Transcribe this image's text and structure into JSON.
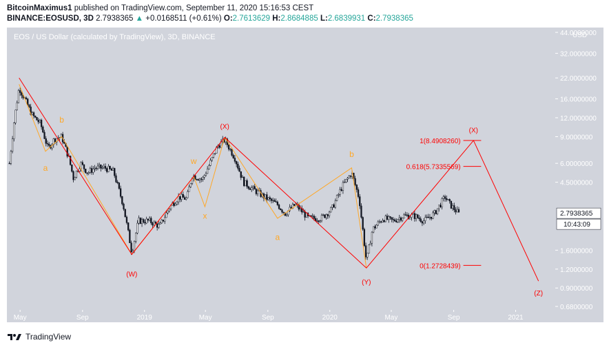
{
  "header": {
    "author": "BitcoinMaximus1",
    "published_text": "published on TradingView.com, September 11, 2020 15:16:53 CEST",
    "symbol": "BINANCE:EOSUSD, 3D",
    "last": "2.7938365",
    "change_arrow": "▲",
    "change": "+0.0168511 (+0.61%)",
    "o_label": "O:",
    "o": "2.7613629",
    "h_label": "H:",
    "h": "2.8684885",
    "l_label": "L:",
    "l": "2.6839931",
    "c_label": "C:",
    "c": "2.7938365"
  },
  "chart_data": {
    "type": "line",
    "title": "EOS / US Dollar (calculated by TradingView), 3D, BINANCE",
    "y_unit": "USD",
    "y_scale": "log",
    "y_ticks": [
      "44.0000000",
      "32.0000000",
      "22.0000000",
      "16.0000000",
      "12.0000000",
      "9.0000000",
      "6.0000000",
      "4.5000000",
      "2.7938365",
      "1.6000000",
      "1.2000000",
      "0.9000000",
      "0.6800000"
    ],
    "x_ticks": [
      "May",
      "Sep",
      "2019",
      "May",
      "Sep",
      "2020",
      "May",
      "Sep",
      "2021"
    ],
    "current_price": "2.7938365",
    "countdown": "10:43:09",
    "price_series": [
      {
        "t": "2018-04-10",
        "v": 6.0
      },
      {
        "t": "2018-04-20",
        "v": 12.0
      },
      {
        "t": "2018-04-29",
        "v": 19.0
      },
      {
        "t": "2018-05-10",
        "v": 16.0
      },
      {
        "t": "2018-05-25",
        "v": 12.5
      },
      {
        "t": "2018-06-10",
        "v": 11.0
      },
      {
        "t": "2018-06-25",
        "v": 7.5
      },
      {
        "t": "2018-07-08",
        "v": 8.7
      },
      {
        "t": "2018-07-22",
        "v": 9.0
      },
      {
        "t": "2018-08-05",
        "v": 6.5
      },
      {
        "t": "2018-08-14",
        "v": 4.8
      },
      {
        "t": "2018-08-28",
        "v": 6.0
      },
      {
        "t": "2018-09-11",
        "v": 5.2
      },
      {
        "t": "2018-09-25",
        "v": 5.6
      },
      {
        "t": "2018-10-15",
        "v": 5.6
      },
      {
        "t": "2018-11-01",
        "v": 5.3
      },
      {
        "t": "2018-11-20",
        "v": 3.2
      },
      {
        "t": "2018-12-07",
        "v": 1.55
      },
      {
        "t": "2018-12-20",
        "v": 2.5
      },
      {
        "t": "2019-01-10",
        "v": 2.5
      },
      {
        "t": "2019-01-31",
        "v": 2.3
      },
      {
        "t": "2019-02-20",
        "v": 3.1
      },
      {
        "t": "2019-03-10",
        "v": 3.6
      },
      {
        "t": "2019-03-25",
        "v": 3.5
      },
      {
        "t": "2019-04-05",
        "v": 5.0
      },
      {
        "t": "2019-04-25",
        "v": 4.7
      },
      {
        "t": "2019-05-10",
        "v": 6.0
      },
      {
        "t": "2019-05-25",
        "v": 7.8
      },
      {
        "t": "2019-06-08",
        "v": 8.6
      },
      {
        "t": "2019-06-28",
        "v": 6.5
      },
      {
        "t": "2019-07-15",
        "v": 4.5
      },
      {
        "t": "2019-08-05",
        "v": 4.0
      },
      {
        "t": "2019-08-25",
        "v": 3.6
      },
      {
        "t": "2019-09-20",
        "v": 3.2
      },
      {
        "t": "2019-10-05",
        "v": 2.8
      },
      {
        "t": "2019-10-25",
        "v": 3.2
      },
      {
        "t": "2019-11-20",
        "v": 2.6
      },
      {
        "t": "2019-12-15",
        "v": 2.6
      },
      {
        "t": "2020-01-05",
        "v": 3.0
      },
      {
        "t": "2020-01-25",
        "v": 4.2
      },
      {
        "t": "2020-02-13",
        "v": 5.2
      },
      {
        "t": "2020-02-28",
        "v": 3.5
      },
      {
        "t": "2020-03-13",
        "v": 1.35
      },
      {
        "t": "2020-03-25",
        "v": 2.2
      },
      {
        "t": "2020-04-15",
        "v": 2.6
      },
      {
        "t": "2020-05-05",
        "v": 2.5
      },
      {
        "t": "2020-05-25",
        "v": 2.7
      },
      {
        "t": "2020-06-15",
        "v": 2.7
      },
      {
        "t": "2020-07-05",
        "v": 2.5
      },
      {
        "t": "2020-07-25",
        "v": 2.8
      },
      {
        "t": "2020-08-15",
        "v": 3.6
      },
      {
        "t": "2020-08-25",
        "v": 3.2
      },
      {
        "t": "2020-09-11",
        "v": 2.79
      }
    ],
    "red_wave": [
      {
        "t": "2018-04-29",
        "v": 22.0
      },
      {
        "t": "2018-12-07",
        "v": 1.5
      },
      {
        "t": "2019-06-08",
        "v": 8.9
      },
      {
        "t": "2020-03-13",
        "v": 1.22
      },
      {
        "t": "2020-10-10",
        "v": 8.49
      },
      {
        "t": "2021-02-15",
        "v": 1.0
      }
    ],
    "orange_abc_1": [
      {
        "t": "2018-04-29",
        "v": 20.0
      },
      {
        "t": "2018-06-20",
        "v": 7.2
      },
      {
        "t": "2018-07-22",
        "v": 9.0
      },
      {
        "t": "2018-12-07",
        "v": 1.5
      }
    ],
    "orange_wxy": [
      {
        "t": "2018-12-07",
        "v": 1.5
      },
      {
        "t": "2019-04-08",
        "v": 4.9
      },
      {
        "t": "2019-04-30",
        "v": 3.1
      },
      {
        "t": "2019-06-08",
        "v": 8.9
      }
    ],
    "orange_abc_2": [
      {
        "t": "2019-06-08",
        "v": 8.9
      },
      {
        "t": "2019-09-20",
        "v": 2.6
      },
      {
        "t": "2020-02-13",
        "v": 5.6
      },
      {
        "t": "2020-03-13",
        "v": 1.22
      }
    ],
    "fib_levels": [
      {
        "label": "1(8.4908260)",
        "v": 8.49
      },
      {
        "label": "0.618(5.7335569)",
        "v": 5.73
      },
      {
        "label": "0(1.2728439)",
        "v": 1.27
      }
    ],
    "wave_labels": [
      {
        "text": "a",
        "color": "orange",
        "t": "2018-06-20",
        "v": 5.6
      },
      {
        "text": "b",
        "color": "orange",
        "t": "2018-07-22",
        "v": 11.6
      },
      {
        "text": "(W)",
        "color": "red",
        "t": "2018-12-07",
        "v": 1.12
      },
      {
        "text": "w",
        "color": "orange",
        "t": "2019-04-08",
        "v": 6.2
      },
      {
        "text": "x",
        "color": "orange",
        "t": "2019-04-30",
        "v": 2.7
      },
      {
        "text": "(X)",
        "color": "red",
        "t": "2019-06-08",
        "v": 10.6
      },
      {
        "text": "a",
        "color": "orange",
        "t": "2019-09-20",
        "v": 1.95
      },
      {
        "text": "b",
        "color": "orange",
        "t": "2020-02-13",
        "v": 6.9
      },
      {
        "text": "(Y)",
        "color": "red",
        "t": "2020-03-13",
        "v": 0.99
      },
      {
        "text": "(X)",
        "color": "red",
        "t": "2020-10-10",
        "v": 10.0
      },
      {
        "text": "(Z)",
        "color": "red",
        "t": "2021-02-15",
        "v": 0.84
      }
    ],
    "colors": {
      "bg": "#d1d4dc",
      "candle": "#131722",
      "red": "#ff0000",
      "orange": "#ffa726",
      "axis_text": "#ffffff",
      "label_bg": "#ffffff"
    }
  },
  "footer": {
    "brand": "TradingView"
  }
}
